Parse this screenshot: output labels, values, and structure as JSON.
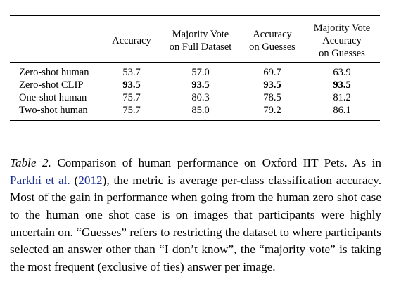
{
  "table": {
    "columns": [
      "",
      "Accuracy",
      "Majority Vote\non Full Dataset",
      "Accuracy\non Guesses",
      "Majority Vote\nAccuracy\non Guesses"
    ],
    "rows": [
      {
        "label": "Zero-shot human",
        "values": [
          "53.7",
          "57.0",
          "69.7",
          "63.9"
        ],
        "bold": false
      },
      {
        "label": "Zero-shot CLIP",
        "values": [
          "93.5",
          "93.5",
          "93.5",
          "93.5"
        ],
        "bold": true
      },
      {
        "label": "One-shot human",
        "values": [
          "75.7",
          "80.3",
          "78.5",
          "81.2"
        ],
        "bold": false
      },
      {
        "label": "Two-shot human",
        "values": [
          "75.7",
          "85.0",
          "79.2",
          "86.1"
        ],
        "bold": false
      }
    ]
  },
  "caption": {
    "label": "Table 2.",
    "part1": " Comparison of human performance on Oxford IIT Pets. As in ",
    "cite_author": "Parkhi et al.",
    "cite_open": " (",
    "cite_year": "2012",
    "part2": "), the metric is average per-class classifica­tion accuracy. Most of the gain in performance when going from the human zero shot case to the human one shot case is on images that participants were highly uncertain on. “Guesses” refers to restricting the dataset to where participants selected an answer other than “I don’t know”, the “majority vote” is taking the most frequent (exclusive of ties) answer per image."
  }
}
